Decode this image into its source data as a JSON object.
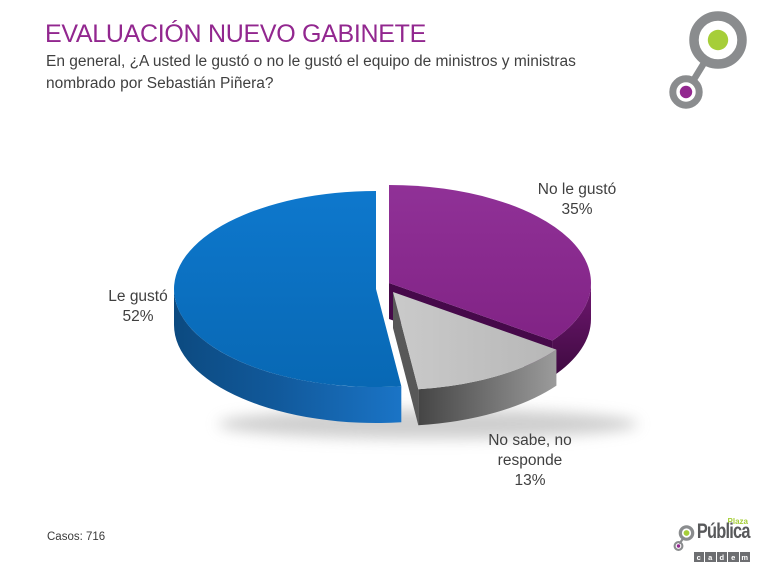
{
  "header": {
    "title": "EVALUACIÓN NUEVO GABINETE",
    "subtitle": "En general, ¿A usted le gustó o no le gustó el equipo de ministros y ministras nombrado por Sebastián Piñera?",
    "subtitle_lines": [
      "En general, ¿A usted le gustó o no le gustó el equipo de ministros y ministras",
      "nombrado por Sebastián Piñera?"
    ],
    "title_color": "#92278f",
    "text_color": "#404040"
  },
  "chart_data": {
    "type": "pie",
    "three_d": true,
    "exploded": true,
    "start_angle_deg": 0,
    "direction": "clockwise",
    "title": "",
    "slices": [
      {
        "label": "No le gustó",
        "value": 35,
        "pct_label": "35%",
        "color": "#8a2b8c"
      },
      {
        "label": "No sabe, no responde",
        "value": 13,
        "pct_label": "13%",
        "color": "#bfbfbf"
      },
      {
        "label": "Le gustó",
        "value": 52,
        "pct_label": "52%",
        "color": "#0b70c0"
      }
    ]
  },
  "footer": {
    "cases": "Casos: 716"
  },
  "branding": {
    "plaza": "Plaza",
    "publica": "Pública",
    "cadem_letters": [
      "c",
      "a",
      "d",
      "e",
      "m"
    ],
    "green": "#a6ce39",
    "purple": "#92278f",
    "gray": "#8a8c8e",
    "dark_gray": "#58595b"
  }
}
